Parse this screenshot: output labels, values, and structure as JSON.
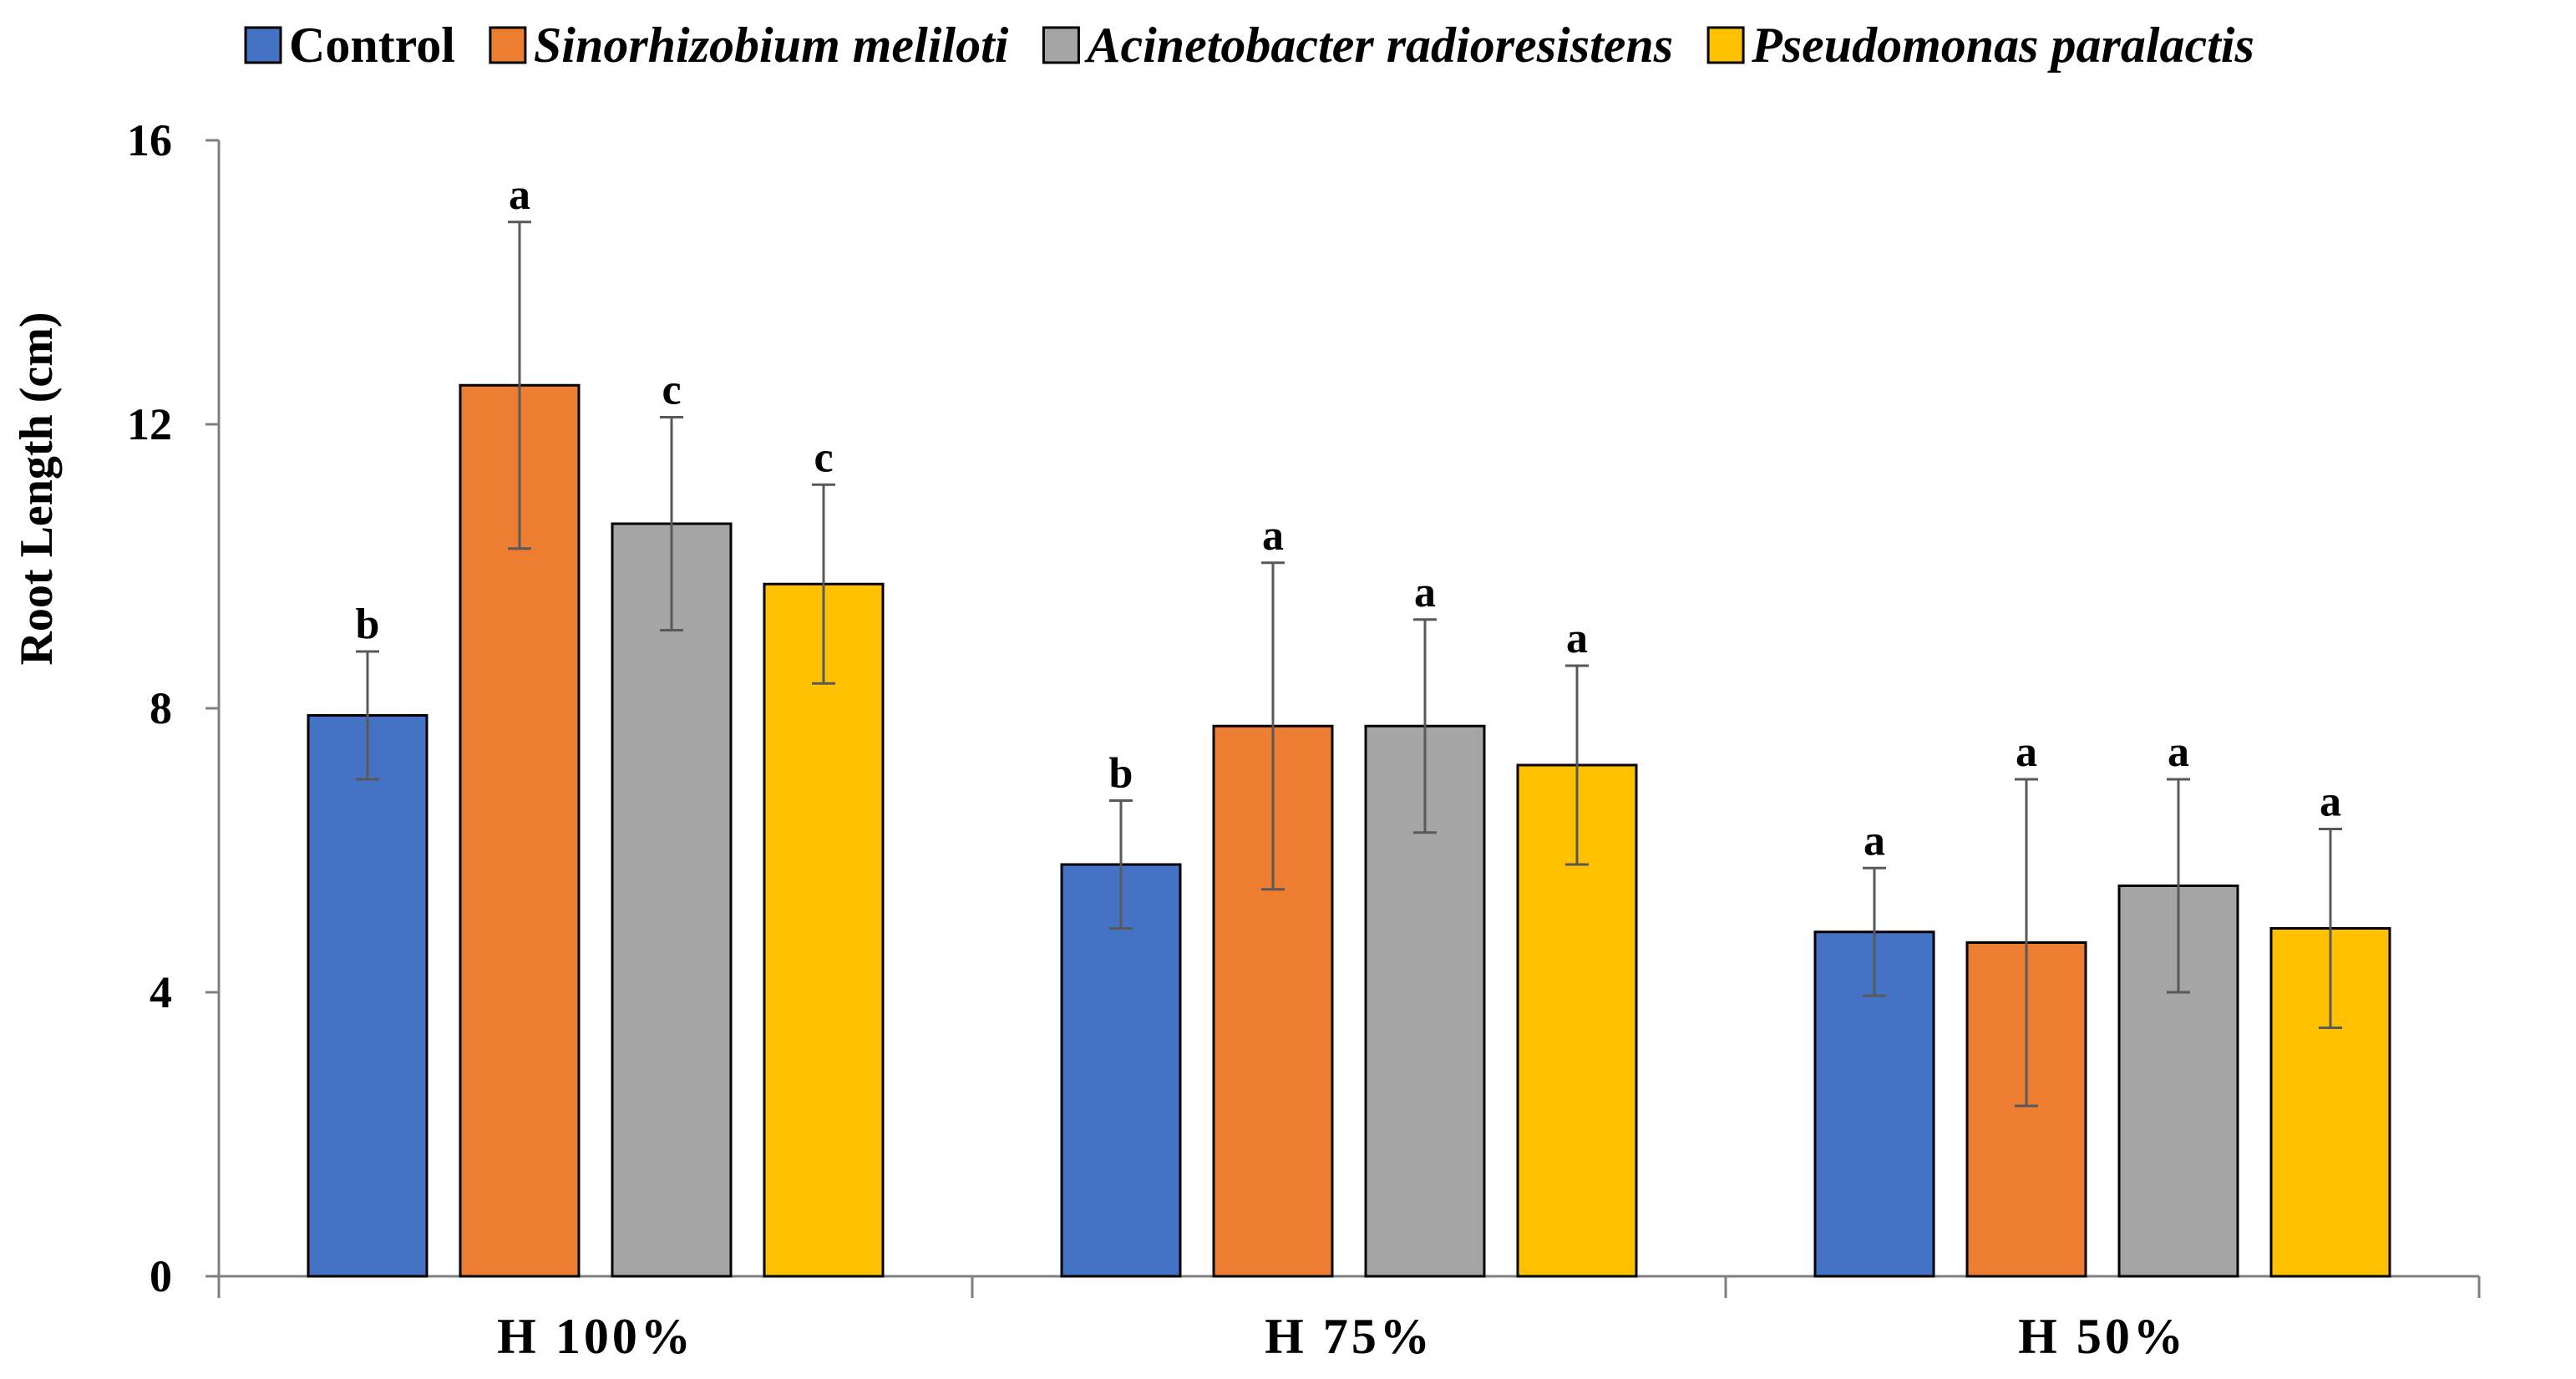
{
  "chart_data": {
    "type": "bar",
    "title": "",
    "xlabel": "",
    "ylabel": "Root Length (cm)",
    "ylim": [
      0,
      16
    ],
    "yticks": [
      "0",
      "4",
      "8",
      "12",
      "16"
    ],
    "grid": false,
    "legend_position": "top",
    "categories": [
      "H 100%",
      "H 75%",
      "H 50%"
    ],
    "series": [
      {
        "name": "Control",
        "italic": false,
        "color": "#4472C4",
        "values": [
          7.9,
          5.8,
          4.85
        ],
        "errors": [
          0.9,
          0.9,
          0.9
        ],
        "letters": [
          "b",
          "b",
          "a"
        ]
      },
      {
        "name": "Sinorhizobium meliloti",
        "italic": true,
        "color": "#ED7D31",
        "values": [
          12.55,
          7.75,
          4.7
        ],
        "errors": [
          2.3,
          2.3,
          2.3
        ],
        "letters": [
          "a",
          "a",
          "a"
        ]
      },
      {
        "name": "Acinetobacter radioresistens",
        "italic": true,
        "color": "#A5A5A5",
        "values": [
          10.6,
          7.75,
          5.5
        ],
        "errors": [
          1.5,
          1.5,
          1.5
        ],
        "letters": [
          "c",
          "a",
          "a"
        ]
      },
      {
        "name": "Pseudomonas paralactis",
        "italic": true,
        "color": "#FFC000",
        "values": [
          9.75,
          7.2,
          4.9
        ],
        "errors": [
          1.4,
          1.4,
          1.4
        ],
        "letters": [
          "c",
          "a",
          "a"
        ]
      }
    ]
  }
}
